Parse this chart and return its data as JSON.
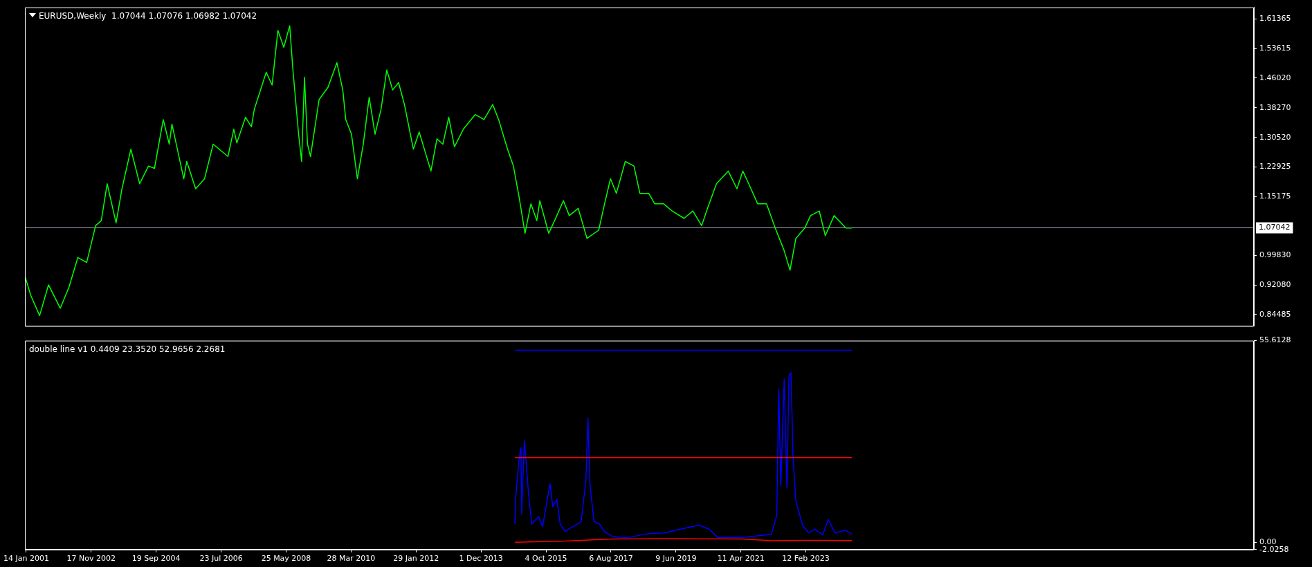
{
  "chart_data": [
    {
      "type": "line",
      "title": "EURUSD,Weekly  1.07044 1.07076 1.06982 1.07042",
      "xlim": [
        "2000-12-31",
        "2035-10-21"
      ],
      "ylim": [
        0.815,
        1.644
      ],
      "yticks": [
        0.84485,
        {
          "value": 0.9208,
          "label": "0.92080"
        },
        {
          "value": 0.9983,
          "label": "0.99830"
        },
        1.15175,
        1.22925,
        {
          "value": 1.3052,
          "label": "1.30520"
        },
        {
          "value": 1.3827,
          "label": "1.38270"
        },
        {
          "value": 1.4602,
          "label": "1.46020"
        },
        1.53615,
        1.61365
      ],
      "tick_labels": "y",
      "ref_lines": [
        {
          "axis": "y",
          "value": 1.07042,
          "label": "1.07042",
          "color": "#a8b0c0"
        }
      ],
      "series": [
        {
          "color": "#00ff00",
          "x": [
            "2001-01",
            "2001-03",
            "2001-06",
            "2001-09",
            "2002-01",
            "2002-04",
            "2002-07",
            "2002-10",
            "2003-01",
            "2003-03",
            "2003-05",
            "2003-08",
            "2003-10",
            "2004-01",
            "2004-04",
            "2004-07",
            "2004-09",
            "2004-12",
            "2005-02",
            "2005-03",
            "2005-07",
            "2005-08",
            "2005-11",
            "2006-02",
            "2006-05",
            "2006-10",
            "2006-12",
            "2007-01",
            "2007-04",
            "2007-06",
            "2007-07",
            "2007-11",
            "2008-01",
            "2008-03",
            "2008-05",
            "2008-07",
            "2008-08",
            "2008-10",
            "2008-11",
            "2008-12",
            "2009-01",
            "2009-02",
            "2009-05",
            "2009-08",
            "2009-11",
            "2010-01",
            "2010-02",
            "2010-04",
            "2010-06",
            "2010-08",
            "2010-10",
            "2010-12",
            "2011-02",
            "2011-04",
            "2011-06",
            "2011-08",
            "2011-10",
            "2012-01",
            "2012-03",
            "2012-07",
            "2012-09",
            "2012-11",
            "2013-01",
            "2013-03",
            "2013-06",
            "2013-10",
            "2014-01",
            "2014-04",
            "2014-06",
            "2014-09",
            "2014-11",
            "2015-01",
            "2015-03",
            "2015-05",
            "2015-07",
            "2015-08",
            "2015-11",
            "2016-01",
            "2016-04",
            "2016-06",
            "2016-09",
            "2016-12",
            "2017-04",
            "2017-06",
            "2017-08",
            "2017-10",
            "2018-01",
            "2018-04",
            "2018-06",
            "2018-09",
            "2018-11",
            "2019-02",
            "2019-05",
            "2019-09",
            "2019-12",
            "2020-03",
            "2020-05",
            "2020-08",
            "2020-12",
            "2021-03",
            "2021-05",
            "2021-07",
            "2021-10",
            "2022-01",
            "2022-04",
            "2022-07",
            "2022-09",
            "2022-11",
            "2023-02",
            "2023-04",
            "2023-07",
            "2023-09",
            "2023-12",
            "2024-04",
            "2024-06"
          ],
          "values": [
            0.944,
            0.895,
            0.842,
            0.922,
            0.861,
            0.916,
            0.993,
            0.98,
            1.076,
            1.089,
            1.185,
            1.083,
            1.172,
            1.275,
            1.185,
            1.231,
            1.225,
            1.352,
            1.288,
            1.34,
            1.198,
            1.243,
            1.172,
            1.198,
            1.288,
            1.256,
            1.327,
            1.291,
            1.358,
            1.333,
            1.379,
            1.475,
            1.442,
            1.584,
            1.54,
            1.596,
            1.488,
            1.314,
            1.243,
            1.462,
            1.288,
            1.256,
            1.404,
            1.436,
            1.5,
            1.429,
            1.352,
            1.314,
            1.198,
            1.288,
            1.41,
            1.314,
            1.379,
            1.481,
            1.429,
            1.448,
            1.391,
            1.275,
            1.32,
            1.218,
            1.302,
            1.288,
            1.358,
            1.281,
            1.327,
            1.365,
            1.352,
            1.391,
            1.352,
            1.275,
            1.231,
            1.147,
            1.056,
            1.133,
            1.089,
            1.141,
            1.056,
            1.089,
            1.141,
            1.102,
            1.121,
            1.043,
            1.064,
            1.133,
            1.198,
            1.16,
            1.243,
            1.231,
            1.16,
            1.16,
            1.133,
            1.133,
            1.114,
            1.095,
            1.114,
            1.076,
            1.121,
            1.185,
            1.218,
            1.172,
            1.218,
            1.185,
            1.133,
            1.133,
            1.07,
            1.012,
            0.96,
            1.043,
            1.07,
            1.102,
            1.114,
            1.05,
            1.102,
            1.07,
            1.07
          ]
        }
      ]
    },
    {
      "type": "line",
      "title": "double line v1 0.4409 23.3520 52.9656 2.2681",
      "xlim": [
        "2000-12-31",
        "2035-10-21"
      ],
      "xticks": [
        {
          "value": "2001-01-14",
          "label": "14 Jan 2001"
        },
        {
          "value": "2002-11-17",
          "label": "17 Nov 2002"
        },
        {
          "value": "2004-09-19",
          "label": "19 Sep 2004"
        },
        {
          "value": "2006-07-23",
          "label": "23 Jul 2006"
        },
        {
          "value": "2008-05-25",
          "label": "25 May 2008"
        },
        {
          "value": "2010-03-28",
          "label": "28 Mar 2010"
        },
        {
          "value": "2012-01-29",
          "label": "29 Jan 2012"
        },
        {
          "value": "2013-12-01",
          "label": "1 Dec 2013"
        },
        {
          "value": "2015-10-04",
          "label": "4 Oct 2015"
        },
        {
          "value": "2017-08-06",
          "label": "6 Aug 2017"
        },
        {
          "value": "2019-06-09",
          "label": "9 Jun 2019"
        },
        {
          "value": "2021-04-11",
          "label": "11 Apr 2021"
        },
        {
          "value": "2023-02-12",
          "label": "12 Feb 2023"
        }
      ],
      "ylim": [
        -2.0258,
        55.6128
      ],
      "yticks": [
        55.6128,
        {
          "value": 0,
          "label": "0.00"
        },
        -2.0258
      ],
      "series": [
        {
          "color": "#0000ff",
          "x": [
            "2014-11-16",
            "2024-06-02"
          ],
          "values": [
            52.9656,
            52.9656
          ]
        },
        {
          "color": "#ff0000",
          "x": [
            "2014-11-16",
            "2024-06-02"
          ],
          "values": [
            23.352,
            23.352
          ]
        },
        {
          "color": "#0000ff",
          "x": [
            "2014-11-16",
            "2014-11-23",
            "2014-12-28",
            "2015-01-18",
            "2015-01-25",
            "2015-02-22",
            "2015-03-15",
            "2015-04-05",
            "2015-05-10",
            "2015-07-19",
            "2015-08-30",
            "2015-11-15",
            "2015-12-13",
            "2016-01-24",
            "2016-02-28",
            "2016-04-17",
            "2016-07-10",
            "2016-10-02",
            "2016-11-20",
            "2016-12-11",
            "2017-01-01",
            "2017-02-12",
            "2017-04-09",
            "2017-05-28",
            "2017-08-20",
            "2018-01-14",
            "2018-08-12",
            "2019-03-03",
            "2019-04-28",
            "2020-02-02",
            "2020-05-17",
            "2020-08-16",
            "2021-04-25",
            "2022-02-20",
            "2022-04-17",
            "2022-05-08",
            "2022-05-29",
            "2022-07-03",
            "2022-07-31",
            "2022-08-21",
            "2022-09-11",
            "2022-10-02",
            "2022-10-30",
            "2023-01-08",
            "2023-03-12",
            "2023-05-14",
            "2023-08-06",
            "2023-10-01",
            "2023-12-10",
            "2024-03-31",
            "2024-06-02"
          ],
          "values": [
            5.0,
            11.8,
            22.7,
            26.1,
            7.8,
            28.1,
            21.3,
            13.8,
            5.0,
            7.1,
            4.3,
            16.2,
            9.8,
            11.8,
            5.0,
            3.0,
            4.3,
            5.7,
            17.2,
            34.2,
            15.9,
            5.7,
            5.0,
            3.0,
            1.6,
            1.2,
            2.3,
            2.6,
            3.1,
            4.7,
            3.6,
            1.3,
            1.3,
            2.2,
            7.4,
            42.3,
            15.6,
            45.0,
            15.0,
            46.0,
            46.8,
            23.9,
            11.6,
            4.7,
            2.6,
            3.6,
            2.0,
            6.3,
            2.6,
            3.3,
            2.2681
          ]
        },
        {
          "color": "#ff0000",
          "x": [
            "2014-11-16",
            "2016-04-17",
            "2017-08-20",
            "2019-03-03",
            "2021-04-25",
            "2022-02-20",
            "2023-01-08",
            "2024-06-02"
          ],
          "values": [
            0.0,
            0.3,
            0.9,
            1.0,
            0.9,
            0.4,
            0.5,
            0.4409
          ]
        }
      ]
    }
  ]
}
